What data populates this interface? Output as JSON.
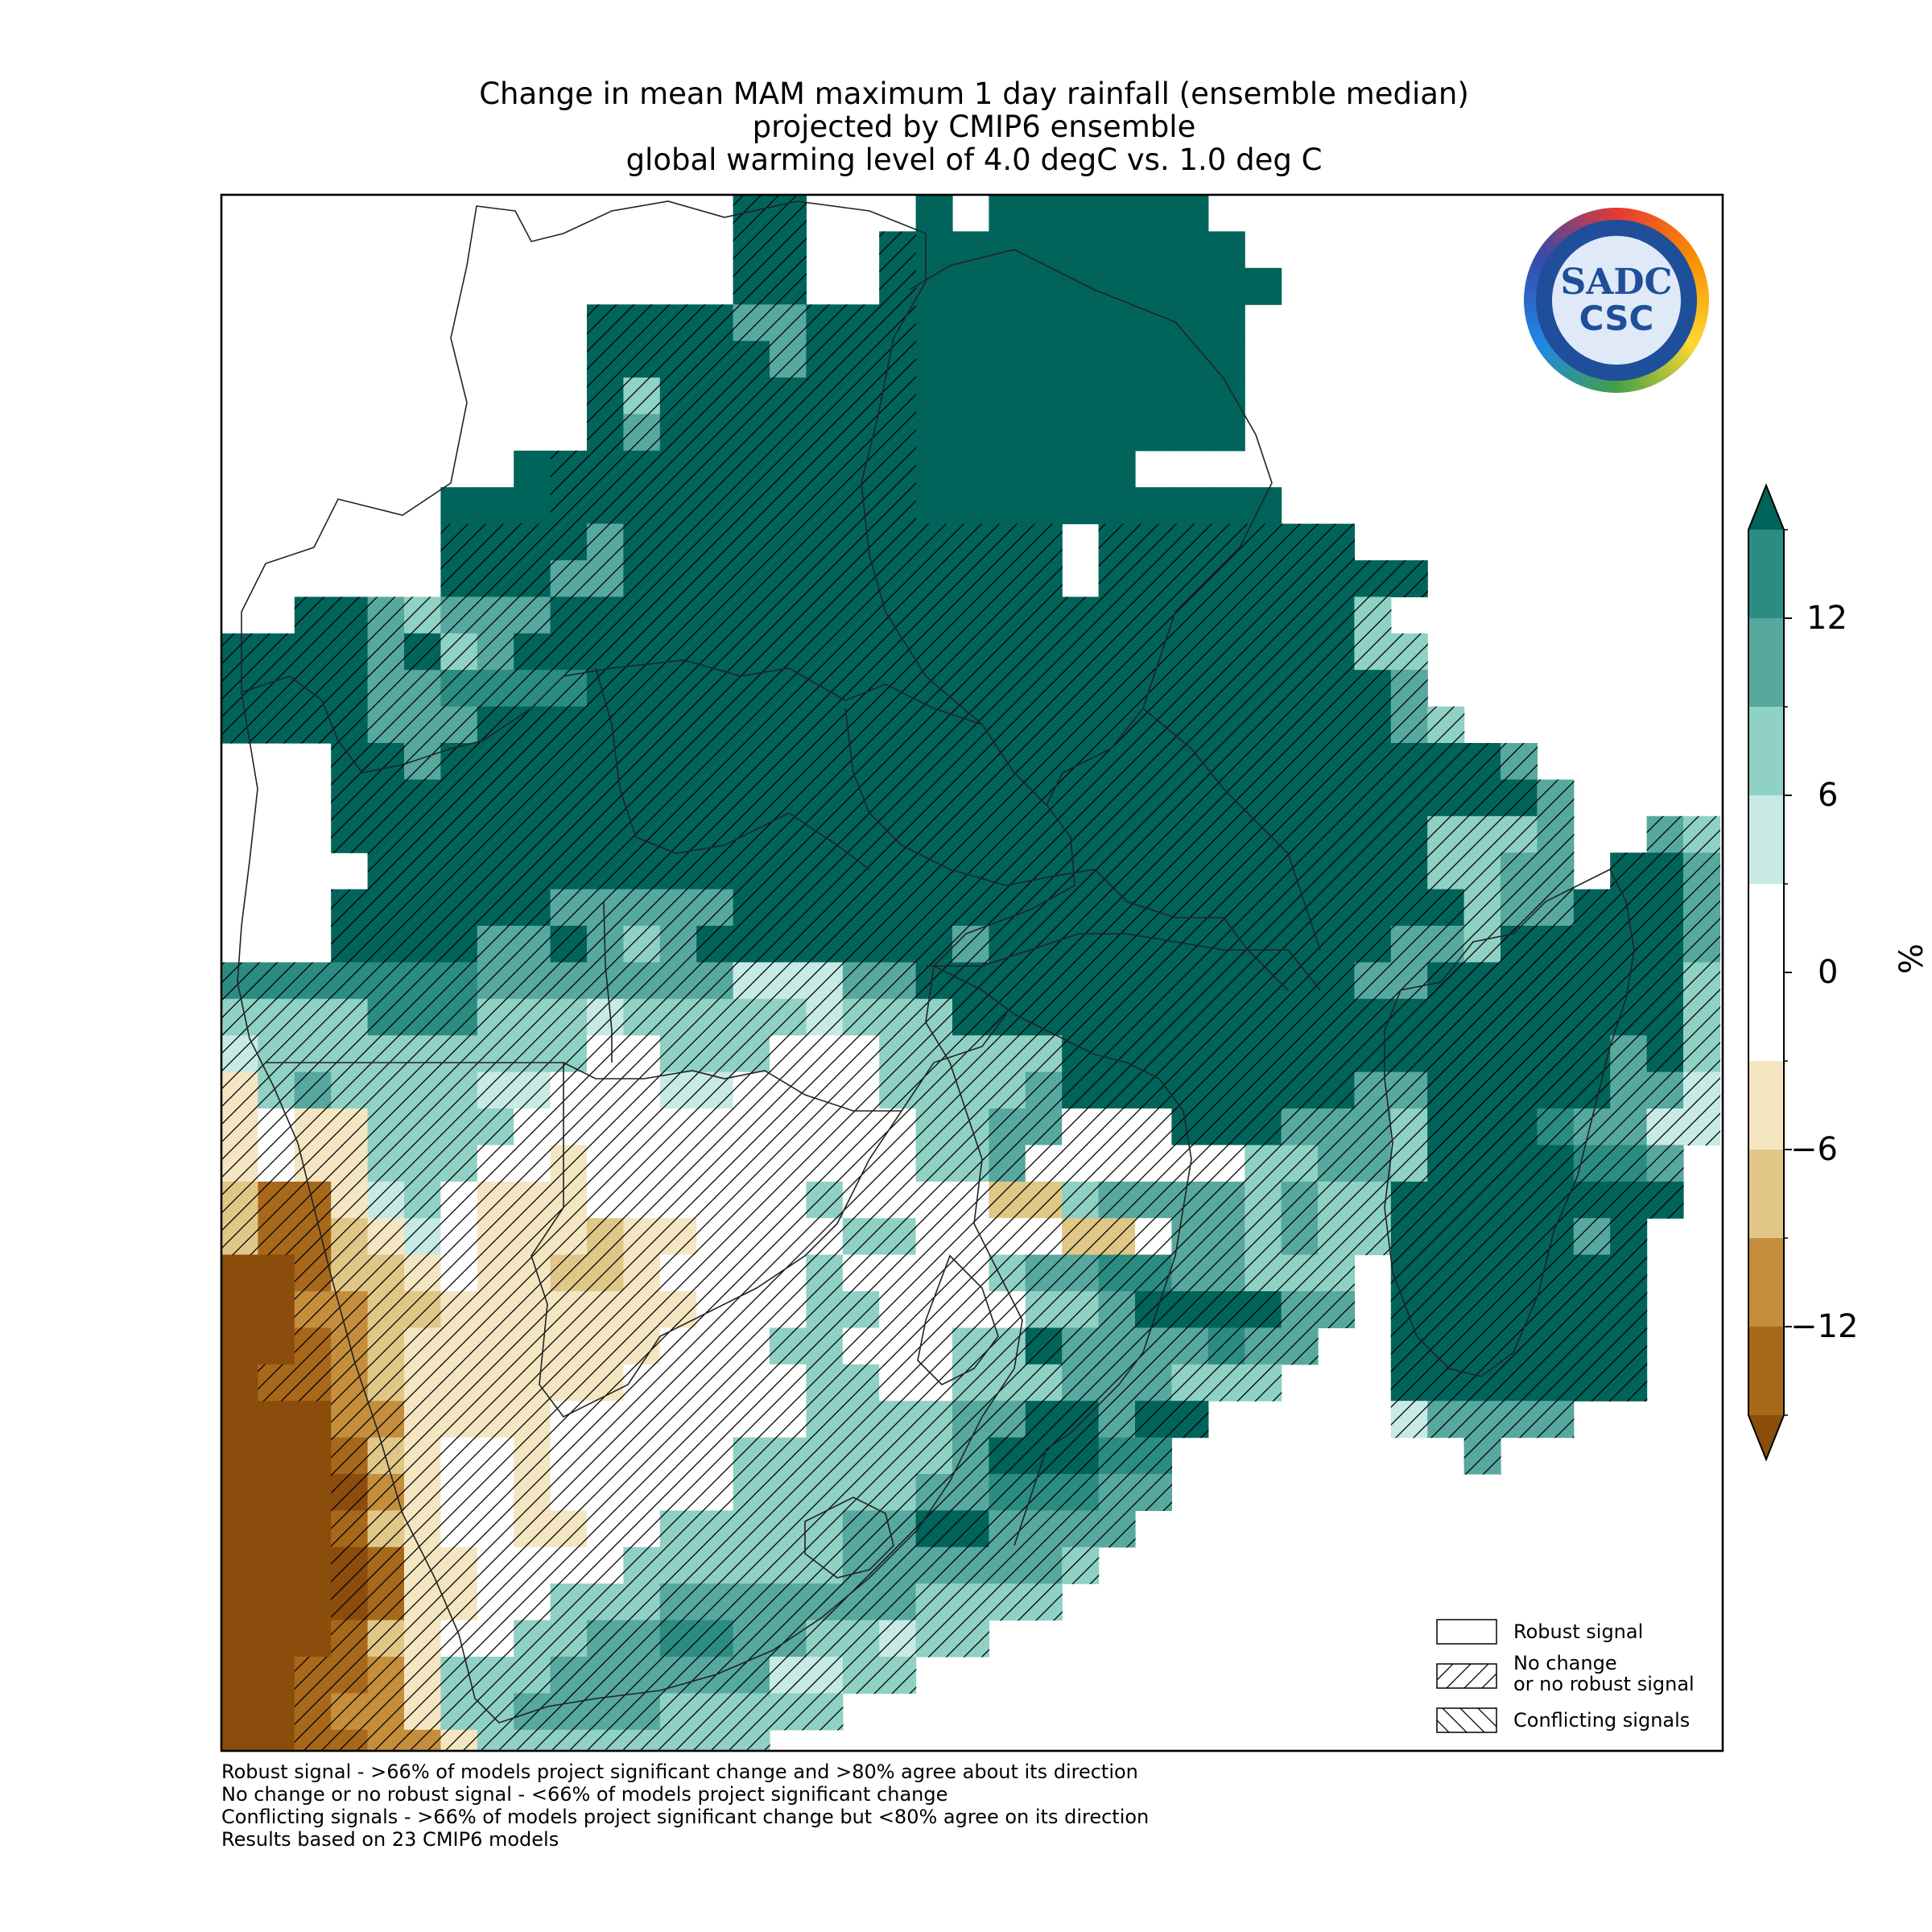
{
  "title": {
    "line1": "Change in mean MAM maximum 1 day rainfall (ensemble median)",
    "line2": "projected by CMIP6 ensemble",
    "line3": "global warming level of 4.0 degC vs. 1.0 deg C"
  },
  "colors": {
    "dark_teal": "#00645a",
    "teal": "#2b8c82",
    "mid_teal": "#57a89e",
    "light_teal": "#8fd1c4",
    "pale_teal": "#c7eae5",
    "white": "#ffffff",
    "pale_tan": "#f5e6c2",
    "tan": "#e0c788",
    "ochre": "#c48e3c",
    "brown": "#a8681a",
    "dark_brown": "#8b4d0c"
  },
  "colorbar": {
    "unit": "%",
    "tick_labels": [
      "12",
      "6",
      "0",
      "−6",
      "−12"
    ],
    "tick_values": [
      12,
      6,
      0,
      -6,
      -12
    ],
    "bounds": [
      -15,
      -12,
      -9,
      -6,
      -3,
      3,
      6,
      9,
      12,
      15
    ],
    "extend": "both"
  },
  "legend": {
    "robust": "Robust signal",
    "no_change_1": "No change",
    "no_change_2": "or no robust signal",
    "conflicting": "Conflicting signals"
  },
  "footnotes": {
    "line1": "Robust signal - >66% of models project significant change and >80% agree about its direction",
    "line2": "No change or no robust signal - <66% of models project significant change",
    "line3": "Conflicting signals - >66% of models project significant change but <80% agree on its direction",
    "line4": "Results based on 23 CMIP6 models"
  },
  "logo": {
    "top_text": "SADC",
    "bottom_text": "CSC"
  }
}
